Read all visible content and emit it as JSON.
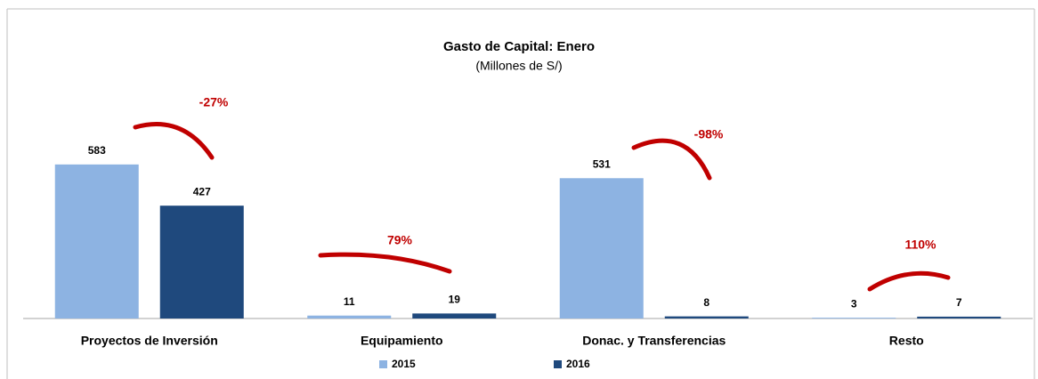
{
  "chart_data": {
    "type": "bar",
    "title": "Gasto de Capital: Enero",
    "subtitle": "(Millones de S/)",
    "categories": [
      "Proyectos de Inversión",
      "Equipamiento",
      "Donac. y Transferencias",
      "Resto"
    ],
    "series": [
      {
        "name": "2015",
        "color": "#8db3e2",
        "values": [
          583,
          11,
          531,
          3
        ]
      },
      {
        "name": "2016",
        "color": "#1f497d",
        "values": [
          427,
          19,
          8,
          7
        ]
      }
    ],
    "annotations": [
      "-27%",
      "79%",
      "-98%",
      "110%"
    ],
    "annotation_color": "#c00000",
    "legend": "bottom"
  }
}
